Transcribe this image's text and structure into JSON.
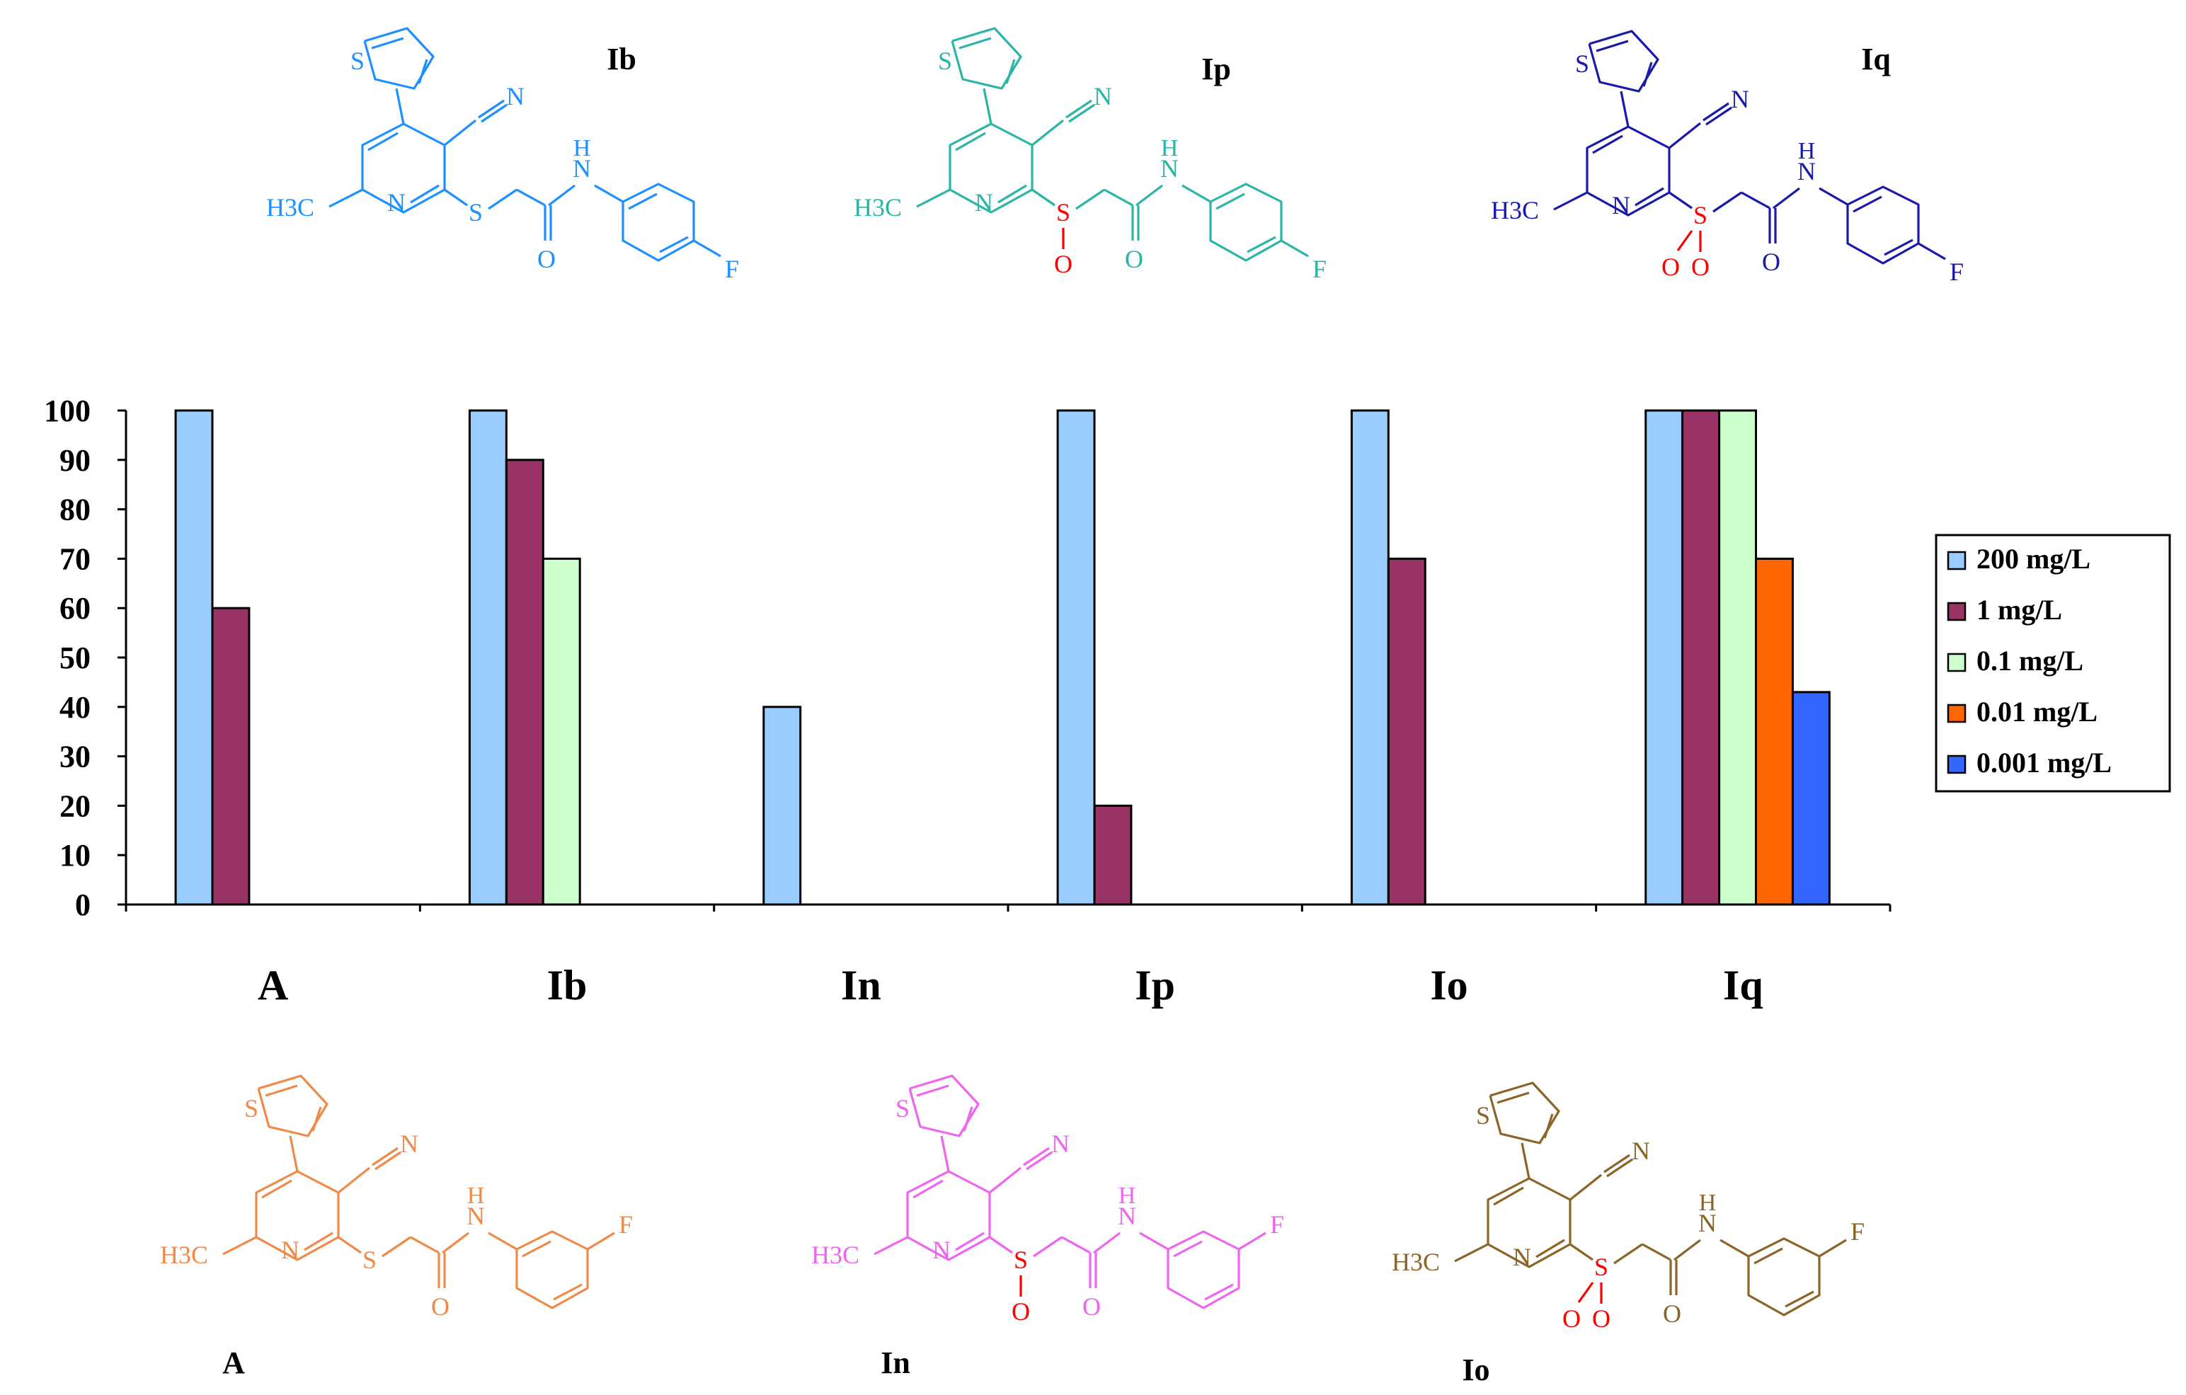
{
  "chart_data": {
    "type": "bar",
    "categories": [
      "A",
      "Ib",
      "In",
      "Ip",
      "Io",
      "Iq"
    ],
    "series": [
      {
        "name": "200 mg/L",
        "color": "#99ccff",
        "values": [
          100,
          100,
          40,
          100,
          100,
          100
        ]
      },
      {
        "name": "1 mg/L",
        "color": "#993366",
        "values": [
          60,
          90,
          null,
          20,
          70,
          100
        ]
      },
      {
        "name": "0.1 mg/L",
        "color": "#ccffcc",
        "values": [
          null,
          70,
          null,
          null,
          null,
          100
        ]
      },
      {
        "name": "0.01 mg/L",
        "color": "#ff6600",
        "values": [
          null,
          null,
          null,
          null,
          null,
          70
        ]
      },
      {
        "name": "0.001 mg/L",
        "color": "#3366ff",
        "values": [
          null,
          null,
          null,
          null,
          null,
          43
        ]
      }
    ],
    "yticks": [
      0,
      10,
      20,
      30,
      40,
      50,
      60,
      70,
      80,
      90,
      100
    ],
    "ylim": [
      0,
      100
    ],
    "grid": false,
    "legend_position": "right"
  },
  "structures": [
    {
      "label": "Ib",
      "color": "#1e90ff",
      "linkage": "S",
      "fluoro": "para"
    },
    {
      "label": "Ip",
      "color": "#2ab5a5",
      "linkage": "SO",
      "fluoro": "para"
    },
    {
      "label": "Iq",
      "color": "#1a1aa8",
      "linkage": "SO2",
      "fluoro": "para"
    },
    {
      "label": "A",
      "color": "#f08a48",
      "linkage": "S",
      "fluoro": "meta"
    },
    {
      "label": "In",
      "color": "#ee66ee",
      "linkage": "SO",
      "fluoro": "meta"
    },
    {
      "label": "Io",
      "color": "#8b6428",
      "linkage": "SO2",
      "fluoro": "meta"
    }
  ],
  "atom_text": {
    "S": "S",
    "N": "N",
    "O": "O",
    "F": "F",
    "H": "H",
    "CN": "N",
    "methyl": "H3C"
  },
  "oxygen_color": "#ff0000"
}
